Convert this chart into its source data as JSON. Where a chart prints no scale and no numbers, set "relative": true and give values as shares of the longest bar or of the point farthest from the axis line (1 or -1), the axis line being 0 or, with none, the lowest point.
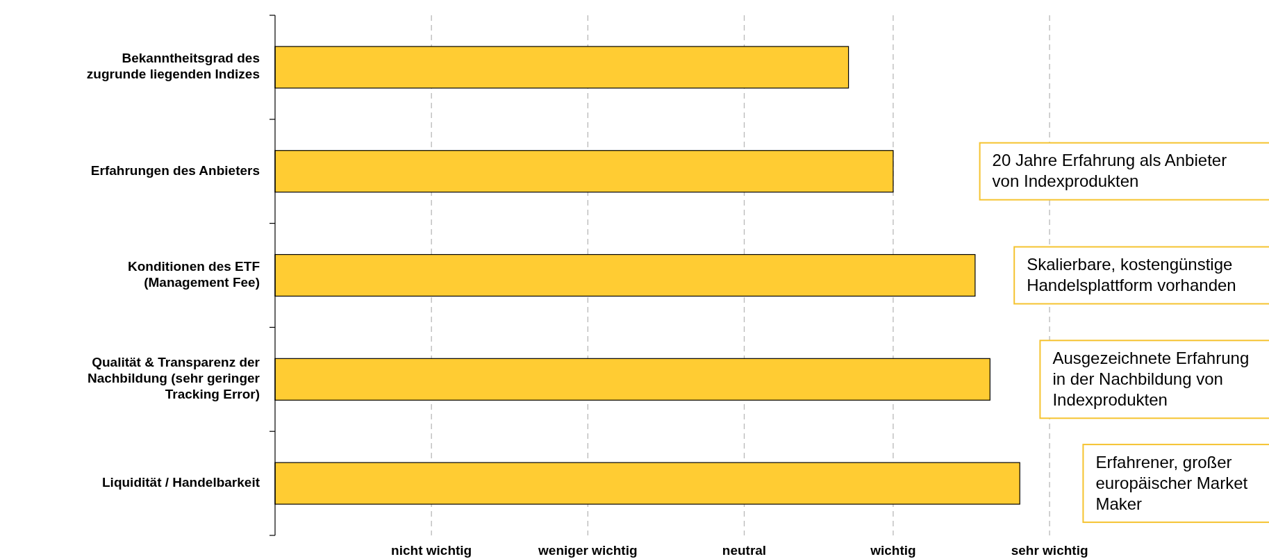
{
  "chart_data": {
    "type": "bar",
    "orientation": "horizontal",
    "relative": true,
    "categories": [
      "Bekanntheitsgrad des zugrunde liegenden Indizes",
      "Erfahrungen des Anbieters",
      "Konditionen des ETF (Management Fee)",
      "Qualität & Transparenz der Nachbildung (sehr geringer Tracking Error)",
      "Liquidität / Handelbarkeit"
    ],
    "values": [
      0.77,
      0.83,
      0.94,
      0.96,
      1
    ],
    "color": "#ffcc33",
    "ref_lines": [
      {
        "axis": "x",
        "value": 0.21,
        "label": "nicht wichtig",
        "color": "#b8b8b8",
        "line_style": "dashed"
      },
      {
        "axis": "x",
        "value": 0.42,
        "label": "weniger wichtig",
        "color": "#b8b8b8",
        "line_style": "dashed"
      },
      {
        "axis": "x",
        "value": 0.63,
        "label": "neutral",
        "color": "#b8b8b8",
        "line_style": "dashed"
      },
      {
        "axis": "x",
        "value": 0.83,
        "label": "wichtig",
        "color": "#b8b8b8",
        "line_style": "dashed"
      },
      {
        "axis": "x",
        "value": 1.04,
        "label": "sehr wichtig",
        "color": "#b8b8b8",
        "line_style": "dashed"
      }
    ],
    "annotations": [
      "20 Jahre Erfahrung als Anbieter\nvon Indexprodukten",
      "Skalierbare, kostengünstige\nHandelsplattform vorhanden",
      "Ausgezeichnete Erfahrung\nin der Nachbildung von\nIndexprodukten",
      "Erfahrener, großer\neuropäischer Market\nMaker"
    ]
  }
}
